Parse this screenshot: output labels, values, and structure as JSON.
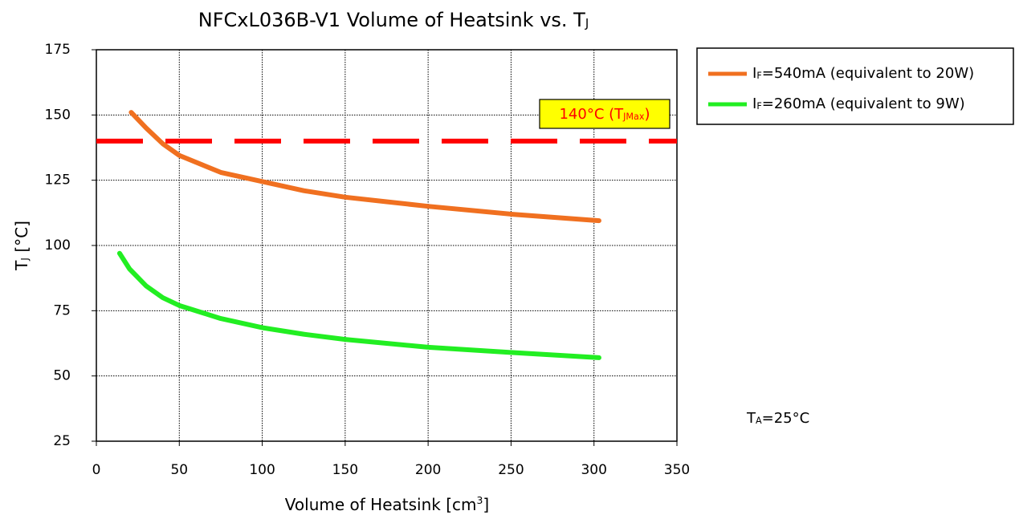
{
  "chart_data": {
    "type": "line",
    "title": [
      {
        "text": "NFCxL036B-V1 Volume of Heatsink vs. T"
      },
      {
        "text": "J",
        "script": "sub"
      }
    ],
    "x_label": [
      {
        "text": "Volume of Heatsink [cm"
      },
      {
        "text": "3",
        "script": "sup"
      },
      {
        "text": "]"
      }
    ],
    "y_label": [
      {
        "text": "T"
      },
      {
        "text": "J",
        "script": "sub"
      },
      {
        "text": " [°C]"
      }
    ],
    "xlim": [
      0,
      350
    ],
    "xticks": [
      0,
      50,
      100,
      150,
      200,
      250,
      300,
      350
    ],
    "ylim": [
      25,
      175
    ],
    "yticks": [
      25,
      50,
      75,
      100,
      125,
      150,
      175
    ],
    "grid": true,
    "legend": "outside-right",
    "series": [
      {
        "name": [
          {
            "text": "I"
          },
          {
            "text": "F",
            "script": "sub"
          },
          {
            "text": "=540mA (equivalent to 20W)"
          }
        ],
        "color": "#f07020",
        "x": [
          21,
          30,
          40,
          50,
          75,
          100,
          125,
          150,
          200,
          250,
          303
        ],
        "values": [
          151,
          145,
          139,
          134.5,
          128,
          124.5,
          121,
          118.5,
          115,
          112,
          109.5
        ]
      },
      {
        "name": [
          {
            "text": "I"
          },
          {
            "text": "F",
            "script": "sub"
          },
          {
            "text": "=260mA (equivalent to 9W)"
          }
        ],
        "color": "#22ee22",
        "x": [
          14,
          20,
          30,
          40,
          50,
          75,
          100,
          125,
          150,
          200,
          250,
          303
        ],
        "values": [
          97,
          91,
          84.5,
          80,
          77,
          72,
          68.5,
          66,
          64,
          61,
          59,
          57
        ]
      }
    ],
    "reference_line": {
      "value": 140,
      "color": "#ff0000",
      "label": [
        {
          "text": "140°C (T"
        },
        {
          "text": "JMax",
          "script": "sub"
        },
        {
          "text": ")"
        }
      ]
    },
    "note": [
      {
        "text": "T"
      },
      {
        "text": "A",
        "script": "sub"
      },
      {
        "text": "=25°C"
      }
    ]
  }
}
